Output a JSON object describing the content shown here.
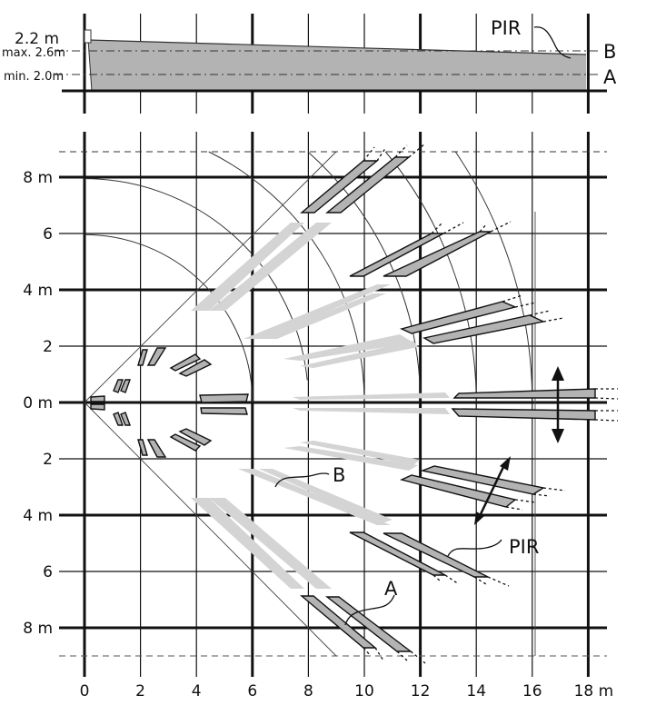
{
  "side_view": {
    "mount_height": "2.2 m",
    "max_label": "max. 2.6m",
    "min_label": "min. 2.0m",
    "label_b": "B",
    "label_a": "A",
    "pir_label": "PIR"
  },
  "top_view": {
    "x_labels": [
      "0",
      "2",
      "4",
      "6",
      "8",
      "10",
      "12",
      "14",
      "16",
      "18 m"
    ],
    "y_labels_upper": [
      "8 m",
      "6",
      "4 m",
      "2",
      "0 m"
    ],
    "y_labels_lower": [
      "2",
      "4 m",
      "6",
      "8 m"
    ],
    "label_b": "B",
    "label_a": "A",
    "pir_label": "PIR"
  }
}
